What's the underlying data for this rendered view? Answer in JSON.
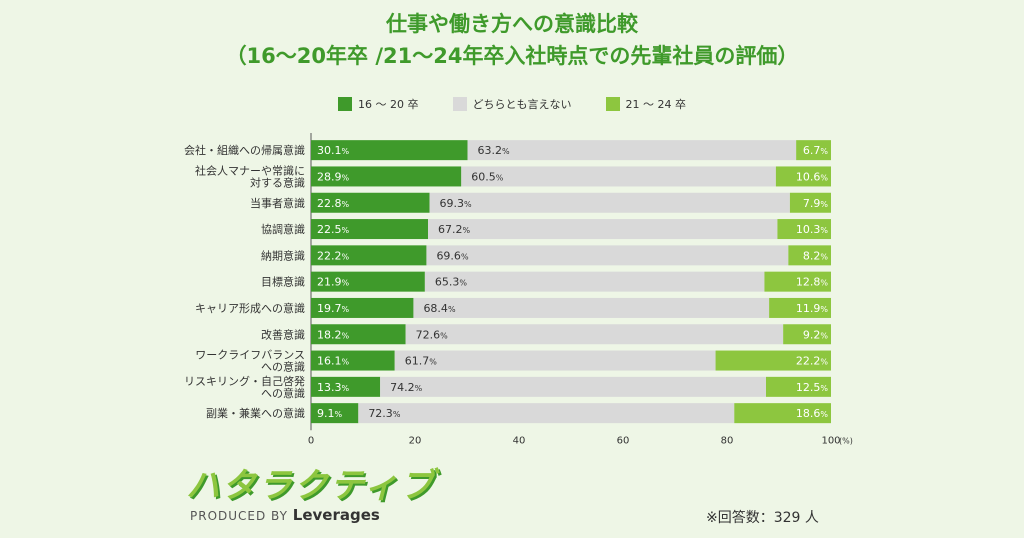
{
  "chart_data": {
    "type": "bar",
    "orientation": "horizontal",
    "stacked": true,
    "title": "仕事や働き方への意識比較\n（16〜20年卒 /21〜24年卒入社時点での先輩社員の評価）",
    "title_lines": [
      "仕事や働き方への意識比較",
      "（16〜20年卒 /21〜24年卒入社時点での先輩社員の評価）"
    ],
    "categories": [
      [
        "会社・組織への帰属意識"
      ],
      [
        "社会人マナーや常識に",
        "対する意識"
      ],
      [
        "当事者意識"
      ],
      [
        "協調意識"
      ],
      [
        "納期意識"
      ],
      [
        "目標意識"
      ],
      [
        "キャリア形成への意識"
      ],
      [
        "改善意識"
      ],
      [
        "ワークライフバランス",
        "への意識"
      ],
      [
        "リスキリング・自己啓発",
        "への意識"
      ],
      [
        "副業・兼業への意識"
      ]
    ],
    "series": [
      {
        "name": "16 〜 20 卒",
        "color": "#3f9a2b",
        "values": [
          30.1,
          28.9,
          22.8,
          22.5,
          22.2,
          21.9,
          19.7,
          18.2,
          16.1,
          13.3,
          9.1
        ]
      },
      {
        "name": "どちらとも言えない",
        "color": "#d9d9d9",
        "values": [
          63.2,
          60.5,
          69.3,
          67.2,
          69.6,
          65.3,
          68.4,
          72.6,
          61.7,
          74.2,
          72.3
        ]
      },
      {
        "name": "21 〜 24 卒",
        "color": "#8dc63f",
        "values": [
          6.7,
          10.6,
          7.9,
          10.3,
          8.2,
          12.8,
          11.9,
          9.2,
          22.2,
          12.5,
          18.6
        ]
      }
    ],
    "value_suffix": "%",
    "xlim": [
      0,
      100
    ],
    "xticks": [
      "0",
      "20",
      "40",
      "60",
      "80",
      "100"
    ],
    "xunit": "(%)",
    "legend_position": "top"
  },
  "footer": {
    "logo": "ハタラクティブ",
    "produced_prefix": "PRODUCED BY",
    "produced_brand": "Leverages",
    "note": "※回答数：329 人"
  }
}
